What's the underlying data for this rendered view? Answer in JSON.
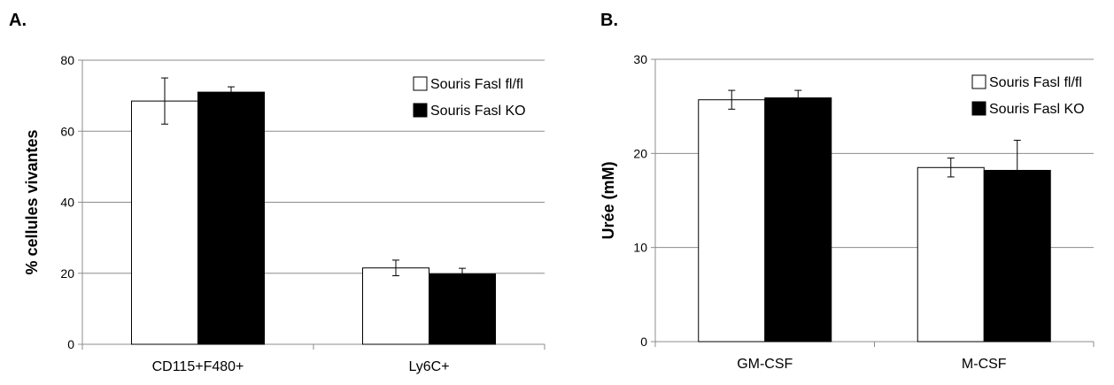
{
  "chart_data": [
    {
      "panel_label": "A.",
      "type": "bar",
      "ylabel": "% cellules vivantes",
      "ylim": [
        0,
        80
      ],
      "yticks": [
        0,
        20,
        40,
        60,
        80
      ],
      "categories": [
        "CD115+F480+",
        "Ly6C+"
      ],
      "series": [
        {
          "name": "Souris Fasl fl/fl",
          "color": "#ffffff",
          "values": [
            68.5,
            21.5
          ],
          "errors": [
            6.5,
            2.2
          ]
        },
        {
          "name": "Souris Fasl KO",
          "color": "#000000",
          "values": [
            71.0,
            19.8
          ],
          "errors": [
            1.5,
            1.6
          ]
        }
      ],
      "grid": true,
      "legend": "top-right"
    },
    {
      "panel_label": "B.",
      "type": "bar",
      "ylabel": "Urée (mM)",
      "ylim": [
        0,
        30
      ],
      "yticks": [
        0,
        10,
        20,
        30
      ],
      "categories": [
        "GM-CSF",
        "M-CSF"
      ],
      "series": [
        {
          "name": "Souris Fasl fl/fl",
          "color": "#ffffff",
          "values": [
            25.7,
            18.5
          ],
          "errors": [
            1.0,
            1.0
          ]
        },
        {
          "name": "Souris Fasl KO",
          "color": "#000000",
          "values": [
            25.9,
            18.2
          ],
          "errors": [
            0.8,
            3.2
          ]
        }
      ],
      "grid": true,
      "legend": "top-right"
    }
  ]
}
